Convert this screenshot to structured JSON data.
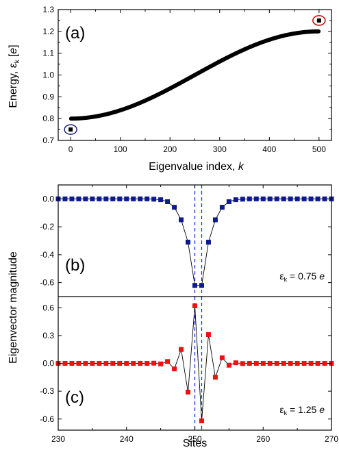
{
  "chart_data": [
    {
      "id": "a",
      "type": "scatter",
      "panel_label": "(a)",
      "xlabel": "Eigenvalue index, ",
      "xlabel_italic": "k",
      "ylabel": "Energy, ε",
      "ylabel_sub": "k",
      "ylabel_unit": "[",
      "ylabel_unit_italic": "e",
      "ylabel_unit_end": "]",
      "xlim": [
        -25,
        525
      ],
      "ylim": [
        0.7,
        1.3
      ],
      "xticks": [
        0,
        100,
        200,
        300,
        400,
        500
      ],
      "yticks": [
        0.7,
        0.8,
        0.9,
        1.0,
        1.1,
        1.2,
        1.3
      ],
      "ytick_labels": [
        "0.7",
        "0.8",
        "0.9",
        "1.0",
        "1.1",
        "1.2",
        "1.3"
      ],
      "curve": {
        "description": "E_k = 1.0 - 0.2*cos(pi*k/500), k = 1..499",
        "k_start": 1,
        "k_end": 499,
        "center": 1.0,
        "amplitude": 0.2,
        "period_index": 500
      },
      "isolated_points": [
        {
          "x": 0,
          "y": 0.75,
          "circle_color": "#1a237e"
        },
        {
          "x": 500,
          "y": 1.25,
          "circle_color": "#cc0000"
        }
      ]
    },
    {
      "id": "b",
      "type": "line",
      "panel_label": "(b)",
      "annotation_prefix": "ε",
      "annotation_sub": "k",
      "annotation_value": " = 0.75 ",
      "annotation_unit": "e",
      "color": "#0d1a8c",
      "xlim": [
        230,
        270
      ],
      "ylim": [
        -0.7,
        0.1
      ],
      "yticks": [
        0.0,
        -0.2,
        -0.4,
        -0.6
      ],
      "ytick_labels": [
        "0.0",
        "-0.2",
        "-0.4",
        "-0.6"
      ],
      "x": [
        230,
        231,
        232,
        233,
        234,
        235,
        236,
        237,
        238,
        239,
        240,
        241,
        242,
        243,
        244,
        245,
        246,
        247,
        248,
        249,
        250,
        251,
        252,
        253,
        254,
        255,
        256,
        257,
        258,
        259,
        260,
        261,
        262,
        263,
        264,
        265,
        266,
        267,
        268,
        269,
        270
      ],
      "y": [
        0,
        0,
        0,
        0,
        0,
        0,
        0,
        0,
        0,
        0,
        0,
        0,
        0,
        0,
        -0.002,
        -0.006,
        -0.02,
        -0.06,
        -0.15,
        -0.31,
        -0.62,
        -0.62,
        -0.31,
        -0.15,
        -0.06,
        -0.02,
        -0.006,
        -0.002,
        0,
        0,
        0,
        0,
        0,
        0,
        0,
        0,
        0,
        0,
        0,
        0,
        0
      ]
    },
    {
      "id": "c",
      "type": "line",
      "panel_label": "(c)",
      "annotation_prefix": "ε",
      "annotation_sub": "k",
      "annotation_value": " = 1.25 ",
      "annotation_unit": "e",
      "color": "#ee1111",
      "xlim": [
        230,
        270
      ],
      "ylim": [
        -0.72,
        0.72
      ],
      "yticks": [
        0.6,
        0.3,
        0.0,
        -0.3,
        -0.6
      ],
      "ytick_labels": [
        "0.6",
        "0.3",
        "0.0",
        "-0.3",
        "-0.6"
      ],
      "xticks": [
        230,
        240,
        250,
        260,
        270
      ],
      "xlabel": "Sites",
      "x": [
        230,
        231,
        232,
        233,
        234,
        235,
        236,
        237,
        238,
        239,
        240,
        241,
        242,
        243,
        244,
        245,
        246,
        247,
        248,
        249,
        250,
        251,
        252,
        253,
        254,
        255,
        256,
        257,
        258,
        259,
        260,
        261,
        262,
        263,
        264,
        265,
        266,
        267,
        268,
        269,
        270
      ],
      "y": [
        0,
        0,
        0,
        0,
        0,
        0,
        0,
        0,
        0,
        0,
        0,
        0,
        0,
        0,
        0.002,
        -0.006,
        0.02,
        -0.06,
        0.15,
        -0.31,
        0.62,
        -0.62,
        0.31,
        -0.15,
        0.06,
        -0.02,
        0.006,
        -0.002,
        0,
        0,
        0,
        0,
        0,
        0,
        0,
        0,
        0,
        0,
        0,
        0,
        0
      ]
    }
  ],
  "shared": {
    "ylabel_bc": "Eigenvector magnitude",
    "dashed_lines_x": [
      250,
      251
    ],
    "dashed_color": "#1133dd"
  }
}
